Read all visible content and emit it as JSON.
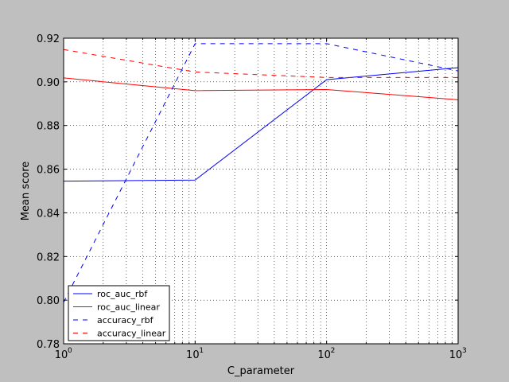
{
  "chart_data": {
    "type": "line",
    "title": "",
    "xlabel": "C_parameter",
    "ylabel": "Mean score",
    "xscale": "log",
    "xlim": [
      1,
      1000
    ],
    "ylim": [
      0.78,
      0.92
    ],
    "grid": true,
    "legend_position": "lower-left",
    "x": [
      1,
      10,
      100,
      1000
    ],
    "x_ticks": [
      1,
      10,
      100,
      1000
    ],
    "x_tick_labels": [
      {
        "base": "10",
        "exp": "0"
      },
      {
        "base": "10",
        "exp": "1"
      },
      {
        "base": "10",
        "exp": "2"
      },
      {
        "base": "10",
        "exp": "3"
      }
    ],
    "y_ticks": [
      0.78,
      0.8,
      0.82,
      0.84,
      0.86,
      0.88,
      0.9,
      0.92
    ],
    "y_tick_labels": [
      "0.78",
      "0.80",
      "0.82",
      "0.84",
      "0.86",
      "0.88",
      "0.90",
      "0.92"
    ],
    "series": [
      {
        "name": "roc_auc_rbf",
        "color": "#0000ff",
        "style": "solid",
        "values": [
          0.8545,
          0.855,
          0.901,
          0.9065
        ]
      },
      {
        "name": "roc_auc_linear",
        "color": "#ff0000",
        "style": "solid",
        "values": [
          0.9018,
          0.896,
          0.8965,
          0.8918
        ]
      },
      {
        "name": "accuracy_rbf",
        "color": "#0000ff",
        "style": "dashed",
        "values": [
          0.799,
          0.9175,
          0.9175,
          0.905
        ]
      },
      {
        "name": "accuracy_linear",
        "color": "#ff0000",
        "style": "dashed",
        "values": [
          0.9148,
          0.9045,
          0.902,
          0.902
        ]
      }
    ]
  }
}
